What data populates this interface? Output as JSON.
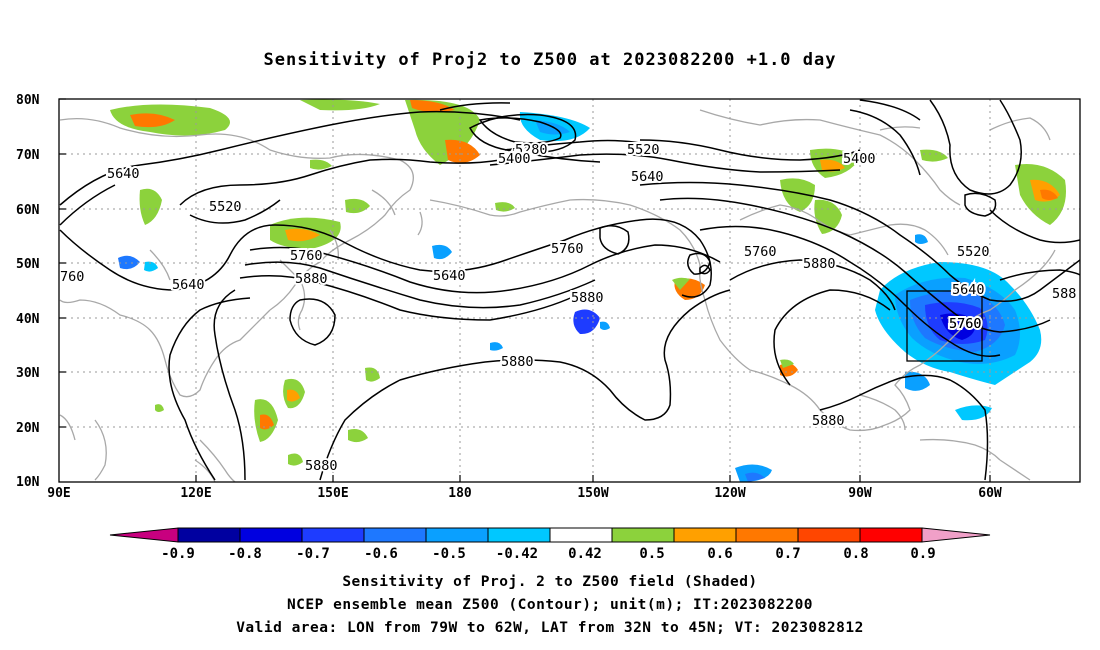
{
  "title": "Sensitivity of Proj2 to Z500 at 2023082200 +1.0 day",
  "axes": {
    "lat_ticks": [
      "80N",
      "70N",
      "60N",
      "50N",
      "40N",
      "30N",
      "20N",
      "10N"
    ],
    "lon_ticks": [
      "90E",
      "120E",
      "150E",
      "180",
      "150W",
      "120W",
      "90W",
      "60W"
    ]
  },
  "colorbar": {
    "labels": [
      "-0.9",
      "-0.8",
      "-0.7",
      "-0.6",
      "-0.5",
      "-0.42",
      "0.42",
      "0.5",
      "0.6",
      "0.7",
      "0.8",
      "0.9"
    ],
    "colors": [
      "#c8007f",
      "#0000a0",
      "#0000e0",
      "#1e3cff",
      "#1e78ff",
      "#0aa0ff",
      "#00c8ff",
      "#ffffff",
      "#8cd23c",
      "#ffa000",
      "#ff7800",
      "#ff4600",
      "#ff0000",
      "#f0a0c8"
    ]
  },
  "contour_labels": [
    "5640",
    "5520",
    "5760",
    "5880",
    "5640",
    "5280",
    "5400",
    "5520",
    "5640",
    "5760",
    "5880",
    "5760",
    "5880",
    "5640",
    "5880",
    "5880",
    "5760",
    "5400",
    "5520",
    "5640",
    "5760",
    "5880",
    "5880",
    "760",
    "588"
  ],
  "footer": {
    "line1": "Sensitivity of Proj. 2 to Z500 field (Shaded)",
    "line2": "NCEP ensemble mean Z500 (Contour); unit(m); IT:2023082200",
    "line3": "Valid area: LON from 79W to 62W, LAT from 32N to 45N; VT: 2023082812"
  },
  "colors": {
    "coast": "#a8a8a8",
    "contour": "#000000",
    "grid": "#9a9a9a"
  }
}
